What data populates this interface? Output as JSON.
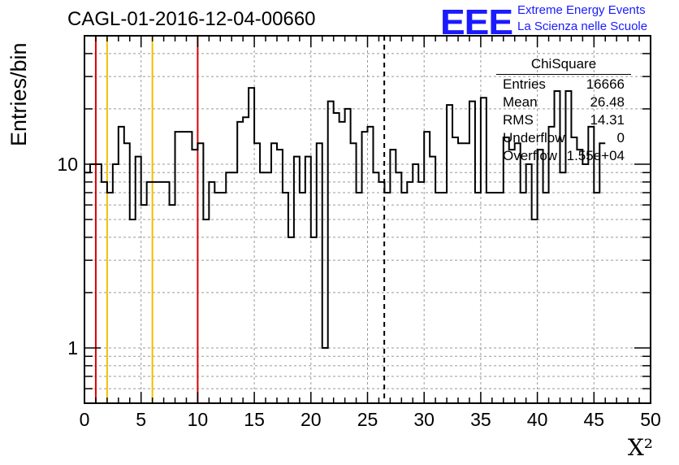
{
  "title": "CAGL-01-2016-12-04-00660",
  "logo": {
    "mark": "EEE",
    "line1": "Extreme Energy Events",
    "line2": "La Scienza nelle Scuole",
    "color": "#1a1aff"
  },
  "stats": {
    "title": "ChiSquare",
    "rows": [
      {
        "label": "Entries",
        "value": "16666"
      },
      {
        "label": "Mean",
        "value": "26.48"
      },
      {
        "label": "RMS",
        "value": "14.31"
      },
      {
        "label": "Underflow",
        "value": "0"
      },
      {
        "label": "Overflow",
        "value": "1.55e+04"
      }
    ]
  },
  "chart_data": {
    "type": "histogram",
    "title": "CAGL-01-2016-12-04-00660",
    "xlabel": "X²",
    "ylabel": "Entries/bin",
    "xlim": [
      0,
      50
    ],
    "ylim": [
      0.5,
      50
    ],
    "yscale": "log",
    "grid": true,
    "bin_width": 0.5,
    "x_ticks": [
      0,
      5,
      10,
      15,
      20,
      25,
      30,
      35,
      40,
      45,
      50
    ],
    "y_ticks": [
      1,
      10
    ],
    "values": [
      9,
      10,
      10,
      8,
      7,
      10,
      16,
      13,
      5,
      11,
      6,
      8,
      8,
      8,
      8,
      6,
      15,
      15,
      15,
      12,
      13,
      5,
      8,
      7,
      7,
      9,
      9,
      17,
      18,
      26,
      13,
      9,
      9,
      13,
      12,
      7,
      4,
      11,
      7,
      11,
      4,
      13,
      1,
      22,
      19,
      17,
      20,
      13,
      7,
      15,
      16,
      9,
      8,
      7,
      12,
      9,
      7,
      8,
      10,
      8,
      15,
      11,
      7,
      7,
      21,
      14,
      13,
      13,
      22,
      7,
      23,
      7,
      7,
      7,
      14,
      12,
      13,
      7,
      10,
      5,
      12,
      7,
      16,
      25,
      9,
      25,
      14,
      12,
      10,
      16,
      7,
      13
    ],
    "vertical_lines": [
      {
        "x": 1,
        "color": "#dd0000",
        "style": "solid"
      },
      {
        "x": 2,
        "color": "#f0c000",
        "style": "solid"
      },
      {
        "x": 6,
        "color": "#f0c000",
        "style": "solid"
      },
      {
        "x": 10,
        "color": "#dd0000",
        "style": "solid"
      },
      {
        "x": 26.48,
        "color": "#000000",
        "style": "dashed"
      }
    ]
  }
}
